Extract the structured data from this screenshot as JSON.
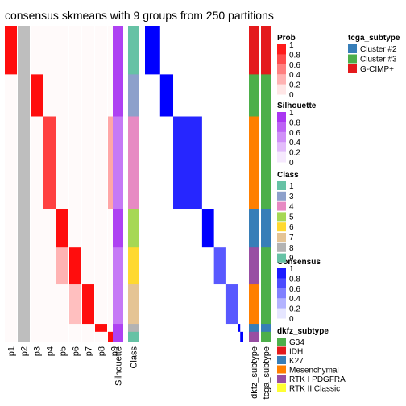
{
  "chart_data": {
    "type": "heatmap",
    "title": "consensus skmeans with 9 groups from 250 partitions",
    "partition_columns": [
      "p1",
      "p2",
      "p3",
      "p4",
      "p5",
      "p6",
      "p7",
      "p8",
      "p9"
    ],
    "annotation_columns": [
      "Silhouette",
      "Class"
    ],
    "side_annotation_columns": [
      "dkfz_subtype",
      "tcga_subtype"
    ],
    "class_colors": {
      "1": "#66C2A5",
      "2": "#BDBDBD",
      "3": "#8DA0CB",
      "4": "#E78AC3",
      "5": "#A6D854",
      "6": "#FFD92F",
      "7": "#E5C494",
      "8": "#B3B3B3",
      "9": "#66C2A5"
    },
    "class_blocks": [
      {
        "cls": "1",
        "frac": 0.154
      },
      {
        "cls": "3",
        "frac": 0.133
      },
      {
        "cls": "4",
        "frac": 0.294
      },
      {
        "cls": "5",
        "frac": 0.121
      },
      {
        "cls": "6",
        "frac": 0.117
      },
      {
        "cls": "7",
        "frac": 0.125
      },
      {
        "cls": "8",
        "frac": 0.025
      },
      {
        "cls": "9",
        "frac": 0.031
      }
    ],
    "legends": {
      "prob": {
        "title": "Prob",
        "ticks": [
          "1",
          "0.8",
          "0.6",
          "0.4",
          "0.2",
          "0"
        ]
      },
      "silhouette": {
        "title": "Silhouette",
        "ticks": [
          "1",
          "0.8",
          "0.6",
          "0.4",
          "0.2",
          "0"
        ]
      },
      "class": {
        "title": "Class",
        "items": [
          "1",
          "3",
          "4",
          "5",
          "6",
          "7",
          "8",
          "9"
        ]
      },
      "consensus": {
        "title": "Consensus",
        "ticks": [
          "1",
          "0.8",
          "0.6",
          "0.4",
          "0.2",
          "0"
        ]
      },
      "dkfz": {
        "title": "dkfz_subtype",
        "items": [
          {
            "label": "G34",
            "color": "#4DAF4A"
          },
          {
            "label": "IDH",
            "color": "#E41A1C"
          },
          {
            "label": "K27",
            "color": "#377EB8"
          },
          {
            "label": "Mesenchymal",
            "color": "#FF7F00"
          },
          {
            "label": "RTK I PDGFRA",
            "color": "#984EA3"
          },
          {
            "label": "RTK II Classic",
            "color": "#FFFF33"
          }
        ]
      },
      "tcga": {
        "title": "tcga_subtype",
        "items": [
          {
            "label": "Cluster #2",
            "color": "#377EB8"
          },
          {
            "label": "Cluster #3",
            "color": "#4DAF4A"
          },
          {
            "label": "G-CIMP+",
            "color": "#E41A1C"
          }
        ]
      }
    },
    "colors": {
      "prob_high": "#FF0000",
      "silhouette_high": "#A020F0",
      "consensus_high": "#0000FF"
    }
  }
}
